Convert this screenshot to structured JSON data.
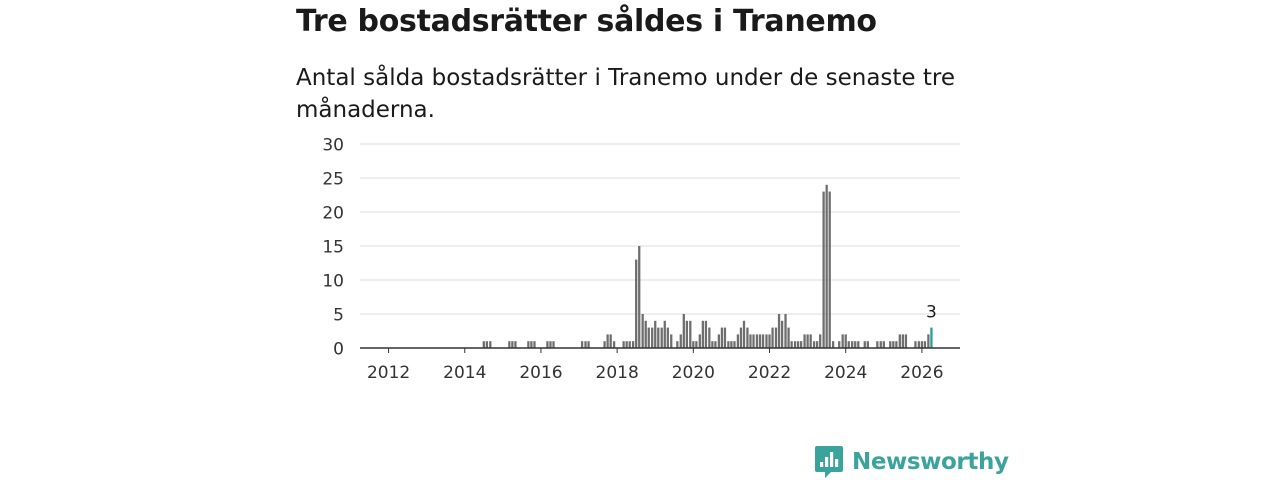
{
  "header": {
    "title": "Tre bostadsrätter såldes i Tranemo",
    "subtitle": "Antal sålda bostadsrätter i Tranemo under de senaste tre månaderna."
  },
  "brand": {
    "name": "Newsworthy"
  },
  "colors": {
    "bar": "#6e6e6e",
    "highlight": "#2a9d96",
    "grid": "#dddddd",
    "axis": "#333333",
    "brand": "#3aa39b"
  },
  "chart_data": {
    "type": "bar",
    "title": "Antal sålda bostadsrätter i Tranemo",
    "xlabel": "",
    "ylabel": "",
    "ylim": [
      0,
      30
    ],
    "xlim": [
      2011.25,
      2027.0
    ],
    "yticks": [
      0,
      5,
      10,
      15,
      20,
      25,
      30
    ],
    "xticks": [
      2012,
      2014,
      2016,
      2018,
      2020,
      2022,
      2024,
      2026
    ],
    "highlight_label": "3",
    "series": [
      {
        "name": "Sålda bostadsrätter",
        "points": [
          [
            2014.5,
            1
          ],
          [
            2014.58,
            1
          ],
          [
            2014.67,
            1
          ],
          [
            2015.17,
            1
          ],
          [
            2015.25,
            1
          ],
          [
            2015.33,
            1
          ],
          [
            2015.67,
            1
          ],
          [
            2015.75,
            1
          ],
          [
            2015.83,
            1
          ],
          [
            2016.17,
            1
          ],
          [
            2016.25,
            1
          ],
          [
            2016.33,
            1
          ],
          [
            2017.08,
            1
          ],
          [
            2017.17,
            1
          ],
          [
            2017.25,
            1
          ],
          [
            2017.67,
            1
          ],
          [
            2017.75,
            2
          ],
          [
            2017.83,
            2
          ],
          [
            2017.92,
            1
          ],
          [
            2018.17,
            1
          ],
          [
            2018.25,
            1
          ],
          [
            2018.33,
            1
          ],
          [
            2018.42,
            1
          ],
          [
            2018.5,
            13
          ],
          [
            2018.58,
            15
          ],
          [
            2018.67,
            5
          ],
          [
            2018.75,
            4
          ],
          [
            2018.83,
            3
          ],
          [
            2018.92,
            3
          ],
          [
            2019.0,
            4
          ],
          [
            2019.08,
            3
          ],
          [
            2019.17,
            3
          ],
          [
            2019.25,
            4
          ],
          [
            2019.33,
            3
          ],
          [
            2019.42,
            2
          ],
          [
            2019.58,
            1
          ],
          [
            2019.67,
            2
          ],
          [
            2019.75,
            5
          ],
          [
            2019.83,
            4
          ],
          [
            2019.92,
            4
          ],
          [
            2020.0,
            1
          ],
          [
            2020.08,
            1
          ],
          [
            2020.17,
            2
          ],
          [
            2020.25,
            4
          ],
          [
            2020.33,
            4
          ],
          [
            2020.42,
            3
          ],
          [
            2020.5,
            1
          ],
          [
            2020.58,
            1
          ],
          [
            2020.67,
            2
          ],
          [
            2020.75,
            3
          ],
          [
            2020.83,
            3
          ],
          [
            2020.92,
            1
          ],
          [
            2021.0,
            1
          ],
          [
            2021.08,
            1
          ],
          [
            2021.17,
            2
          ],
          [
            2021.25,
            3
          ],
          [
            2021.33,
            4
          ],
          [
            2021.42,
            3
          ],
          [
            2021.5,
            2
          ],
          [
            2021.58,
            2
          ],
          [
            2021.67,
            2
          ],
          [
            2021.75,
            2
          ],
          [
            2021.83,
            2
          ],
          [
            2021.92,
            2
          ],
          [
            2022.0,
            2
          ],
          [
            2022.08,
            3
          ],
          [
            2022.17,
            3
          ],
          [
            2022.25,
            5
          ],
          [
            2022.33,
            4
          ],
          [
            2022.42,
            5
          ],
          [
            2022.5,
            3
          ],
          [
            2022.58,
            1
          ],
          [
            2022.67,
            1
          ],
          [
            2022.75,
            1
          ],
          [
            2022.83,
            1
          ],
          [
            2022.92,
            2
          ],
          [
            2023.0,
            2
          ],
          [
            2023.08,
            2
          ],
          [
            2023.17,
            1
          ],
          [
            2023.25,
            1
          ],
          [
            2023.33,
            2
          ],
          [
            2023.42,
            23
          ],
          [
            2023.5,
            24
          ],
          [
            2023.58,
            23
          ],
          [
            2023.67,
            1
          ],
          [
            2023.83,
            1
          ],
          [
            2023.92,
            2
          ],
          [
            2024.0,
            2
          ],
          [
            2024.08,
            1
          ],
          [
            2024.17,
            1
          ],
          [
            2024.25,
            1
          ],
          [
            2024.33,
            1
          ],
          [
            2024.5,
            1
          ],
          [
            2024.58,
            1
          ],
          [
            2024.83,
            1
          ],
          [
            2024.92,
            1
          ],
          [
            2025.0,
            1
          ],
          [
            2025.17,
            1
          ],
          [
            2025.25,
            1
          ],
          [
            2025.33,
            1
          ],
          [
            2025.42,
            2
          ],
          [
            2025.5,
            2
          ],
          [
            2025.58,
            2
          ],
          [
            2025.83,
            1
          ],
          [
            2025.92,
            1
          ],
          [
            2026.0,
            1
          ],
          [
            2026.08,
            1
          ],
          [
            2026.17,
            2
          ],
          [
            2026.25,
            3
          ]
        ]
      }
    ]
  }
}
